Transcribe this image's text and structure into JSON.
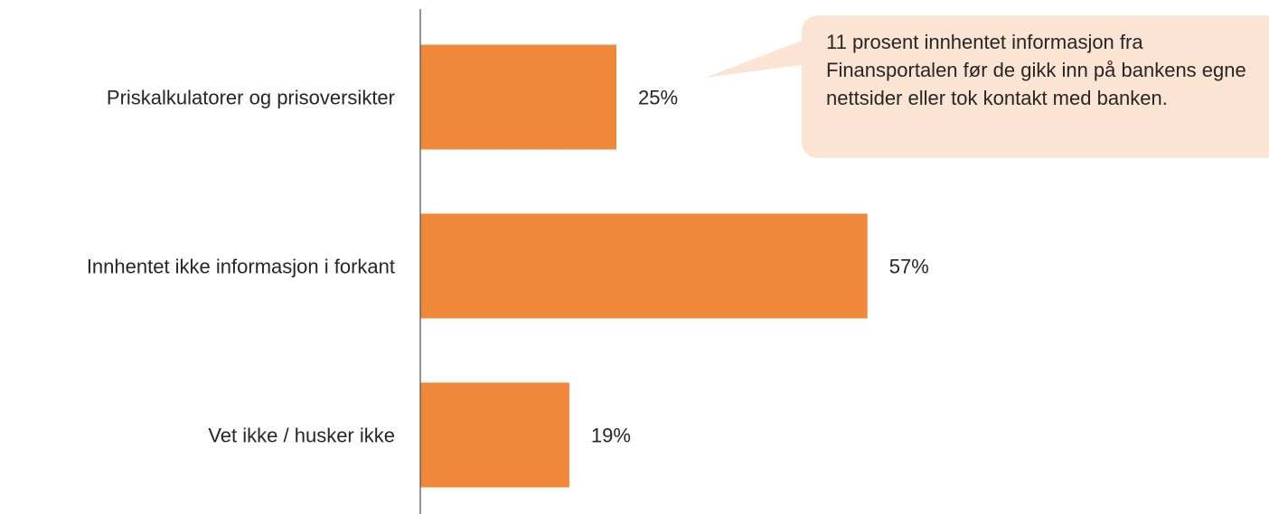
{
  "chart_data": {
    "type": "bar",
    "orientation": "horizontal",
    "categories": [
      "Priskalkulatorer og prisoversikter",
      "Innhentet ikke informasjon i forkant",
      "Vet ikke / husker ikke"
    ],
    "values": [
      25,
      57,
      19
    ],
    "value_labels": [
      "25%",
      "57%",
      "19%"
    ],
    "unit": "%",
    "xlim": [
      0,
      100
    ],
    "grid": false,
    "legend": "none",
    "bar_color": "#f0883a",
    "axis_color": "#595959",
    "title": "",
    "xlabel": "",
    "ylabel": ""
  },
  "callout": {
    "text": "11 prosent innhentet informasjon fra Finansportalen før de gikk inn på bankens egne nettsider eller tok kontakt med banken.",
    "background": "#fce4d4"
  }
}
